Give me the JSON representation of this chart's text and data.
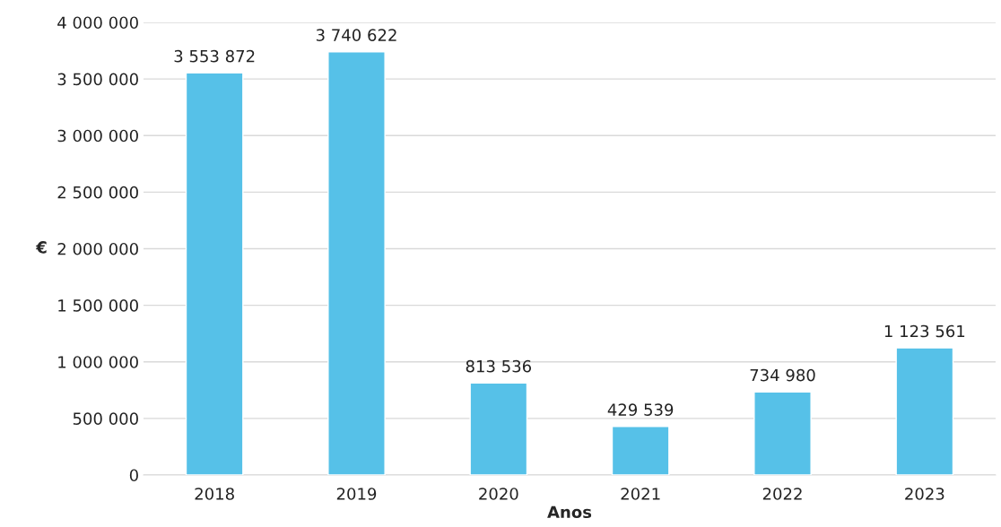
{
  "chart_data": {
    "type": "bar",
    "xlabel": "Anos",
    "ylabel": "€",
    "categories": [
      "2018",
      "2019",
      "2020",
      "2021",
      "2022",
      "2023"
    ],
    "values": [
      3553872,
      3740622,
      813536,
      429539,
      734980,
      1123561
    ],
    "value_labels": [
      "3 553 872",
      "3 740 622",
      "813 536",
      "429 539",
      "734 980",
      "1 123 561"
    ],
    "color": "#56c1e8",
    "ylim": [
      0,
      4000000
    ],
    "yticks": [
      {
        "value": 0,
        "label": "0"
      },
      {
        "value": 500000,
        "label": "500 000"
      },
      {
        "value": 1000000,
        "label": "1 000 000"
      },
      {
        "value": 1500000,
        "label": "1 500 000"
      },
      {
        "value": 2000000,
        "label": "2 000 000"
      },
      {
        "value": 2500000,
        "label": "2 500 000"
      },
      {
        "value": 3000000,
        "label": "3 000 000"
      },
      {
        "value": 3500000,
        "label": "3 500 000"
      },
      {
        "value": 4000000,
        "label": "4 000 000"
      }
    ],
    "grid": "y",
    "legend": false
  }
}
